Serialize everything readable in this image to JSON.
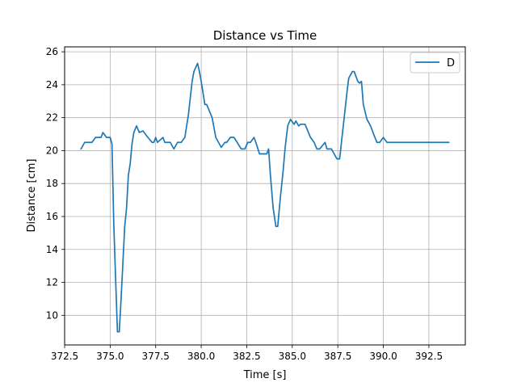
{
  "chart_data": {
    "type": "line",
    "title": "Distance vs Time",
    "xlabel": "Time [s]",
    "ylabel": "Distance [cm]",
    "xlim": [
      372.5,
      394.5
    ],
    "ylim": [
      8.2,
      26.3
    ],
    "xticks": [
      372.5,
      375.0,
      377.5,
      380.0,
      382.5,
      385.0,
      387.5,
      390.0,
      392.5
    ],
    "xtick_labels": [
      "372.5",
      "375.0",
      "377.5",
      "380.0",
      "382.5",
      "385.0",
      "387.5",
      "390.0",
      "392.5"
    ],
    "yticks": [
      10,
      12,
      14,
      16,
      18,
      20,
      22,
      24,
      26
    ],
    "ytick_labels": [
      "10",
      "12",
      "14",
      "16",
      "18",
      "20",
      "22",
      "24",
      "26"
    ],
    "grid": true,
    "legend_position": "top-right",
    "series": [
      {
        "name": "D",
        "color": "#1f77b4",
        "x": [
          373.4,
          373.6,
          374.0,
          374.2,
          374.5,
          374.6,
          374.8,
          375.0,
          375.1,
          375.2,
          375.3,
          375.4,
          375.5,
          375.6,
          375.8,
          375.9,
          376.0,
          376.1,
          376.2,
          376.3,
          376.45,
          376.6,
          376.8,
          377.0,
          377.3,
          377.4,
          377.5,
          377.6,
          377.9,
          378.0,
          378.3,
          378.5,
          378.7,
          378.9,
          379.1,
          379.3,
          379.4,
          379.5,
          379.6,
          379.8,
          379.9,
          380.0,
          380.2,
          380.3,
          380.6,
          380.8,
          381.1,
          381.3,
          381.4,
          381.6,
          381.8,
          382.2,
          382.4,
          382.55,
          382.7,
          382.9,
          383.0,
          383.2,
          383.4,
          383.6,
          383.7,
          383.8,
          383.95,
          384.1,
          384.2,
          384.35,
          384.5,
          384.6,
          384.75,
          384.9,
          385.1,
          385.2,
          385.35,
          385.45,
          385.55,
          385.7,
          385.85,
          386.0,
          386.2,
          386.35,
          386.5,
          386.8,
          386.9,
          387.0,
          387.15,
          387.45,
          387.6,
          387.8,
          388.0,
          388.1,
          388.3,
          388.4,
          388.6,
          388.7,
          388.8,
          388.9,
          389.1,
          389.3,
          389.5,
          389.65,
          389.8,
          390.0,
          390.2,
          390.35,
          390.5,
          390.7,
          390.8,
          390.9,
          391.0,
          391.5,
          392.0,
          392.5,
          393.0,
          393.6
        ],
        "y": [
          20.1,
          20.5,
          20.5,
          20.8,
          20.8,
          21.1,
          20.8,
          20.8,
          20.4,
          15.5,
          12.2,
          9.0,
          9.0,
          11.0,
          15.4,
          16.5,
          18.5,
          19.2,
          20.4,
          21.1,
          21.5,
          21.1,
          21.2,
          20.9,
          20.5,
          20.5,
          20.8,
          20.5,
          20.8,
          20.5,
          20.5,
          20.1,
          20.5,
          20.5,
          20.8,
          22.2,
          23.2,
          24.2,
          24.8,
          25.3,
          24.8,
          24.2,
          22.8,
          22.8,
          22.0,
          20.8,
          20.2,
          20.5,
          20.5,
          20.8,
          20.8,
          20.1,
          20.1,
          20.5,
          20.5,
          20.8,
          20.5,
          19.8,
          19.8,
          19.8,
          20.1,
          18.5,
          16.5,
          15.4,
          15.4,
          17.2,
          18.8,
          20.1,
          21.5,
          21.9,
          21.6,
          21.8,
          21.5,
          21.6,
          21.6,
          21.6,
          21.2,
          20.8,
          20.5,
          20.1,
          20.1,
          20.5,
          20.1,
          20.1,
          20.1,
          19.5,
          19.5,
          21.5,
          23.5,
          24.4,
          24.8,
          24.8,
          24.2,
          24.1,
          24.2,
          22.8,
          21.9,
          21.5,
          20.9,
          20.5,
          20.5,
          20.8,
          20.5,
          20.5,
          20.5,
          20.5,
          20.5,
          20.5,
          20.5,
          20.5,
          20.5,
          20.5,
          20.5,
          20.5
        ]
      }
    ]
  }
}
